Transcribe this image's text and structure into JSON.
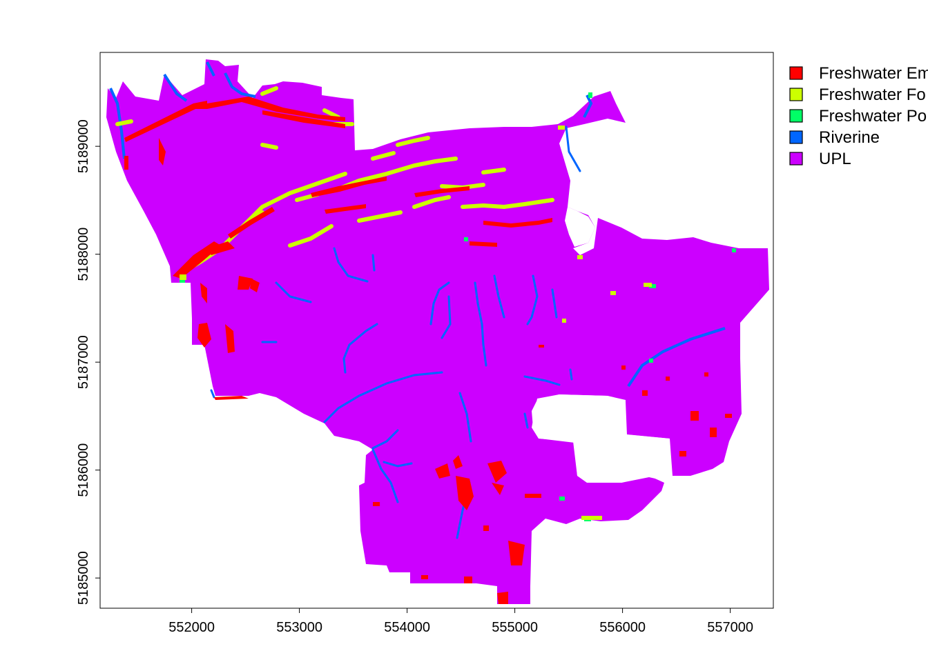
{
  "chart_data": {
    "type": "map",
    "title": "",
    "xlabel": "",
    "ylabel": "",
    "xlim": [
      551150,
      557400
    ],
    "ylim": [
      5184720,
      5189870
    ],
    "x_ticks": [
      552000,
      553000,
      554000,
      555000,
      556000,
      557000
    ],
    "y_ticks": [
      5185000,
      5186000,
      5187000,
      5188000,
      5189000
    ],
    "x_tick_labels": [
      "552000",
      "553000",
      "554000",
      "555000",
      "556000",
      "557000"
    ],
    "y_tick_labels": [
      "5185000",
      "5186000",
      "5187000",
      "5188000",
      "5189000"
    ],
    "legend_position": "right-top (clipped)",
    "legend": [
      {
        "label": "Freshwater Em",
        "color": "#ff0000"
      },
      {
        "label": "Freshwater Fo",
        "color": "#ccff00"
      },
      {
        "label": "Freshwater Po",
        "color": "#00ff66"
      },
      {
        "label": "Riverine",
        "color": "#0066ff"
      },
      {
        "label": "UPL",
        "color": "#cc00ff"
      }
    ],
    "colors": {
      "freshwater_emergent": "#ff0000",
      "freshwater_forested": "#ccff00",
      "freshwater_pond": "#00ff66",
      "riverine": "#0066ff",
      "upland": "#cc00ff"
    }
  }
}
